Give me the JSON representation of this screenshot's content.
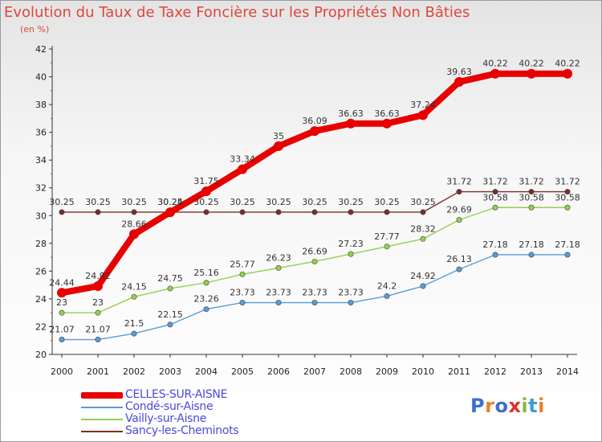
{
  "header": {
    "title": "Evolution du Taux de Taxe Foncière sur les Propriétés Non Bâties",
    "unit": "(en %)"
  },
  "brand": {
    "text": "Proxiti",
    "colors": [
      "#3b6fd0",
      "#e8822a",
      "#3b6fd0",
      "#e23030",
      "#7fbf3f",
      "#3b9bd6",
      "#e8822a"
    ]
  },
  "chart_data": {
    "type": "line",
    "title": "Evolution du Taux de Taxe Foncière sur les Propriétés Non Bâties",
    "ylabel": "(en %)",
    "xlabel": "",
    "x": [
      "2000",
      "2001",
      "2002",
      "2003",
      "2004",
      "2005",
      "2006",
      "2007",
      "2008",
      "2009",
      "2010",
      "2011",
      "2012",
      "2013",
      "2014"
    ],
    "ylim": [
      20,
      42
    ],
    "yticks": [
      20,
      22,
      24,
      26,
      28,
      30,
      32,
      34,
      36,
      38,
      40,
      42
    ],
    "grid": false,
    "legend_position": "bottom-left",
    "series": [
      {
        "name": "CELLES-SUR-AISNE",
        "color": "#e80000",
        "emphasis": true,
        "values": [
          24.44,
          24.92,
          28.66,
          30.24,
          31.75,
          33.34,
          35,
          36.09,
          36.63,
          36.63,
          37.24,
          39.63,
          40.22,
          40.22,
          40.22
        ],
        "labels": [
          "24.44",
          "24.92",
          "28.66",
          "30.24",
          "31.75",
          "33.34",
          "35",
          "36.09",
          "36.63",
          "36.63",
          "37.24",
          "39.63",
          "40.22",
          "40.22",
          "40.22"
        ]
      },
      {
        "name": "Condé-sur-Aisne",
        "color": "#5b9bd5",
        "emphasis": false,
        "values": [
          21.07,
          21.07,
          21.5,
          22.15,
          23.26,
          23.73,
          23.73,
          23.73,
          23.73,
          24.2,
          24.92,
          26.13,
          27.18,
          27.18,
          27.18
        ],
        "labels": [
          "21.07",
          "21.07",
          "21.5",
          "22.15",
          "23.26",
          "23.73",
          "23.73",
          "23.73",
          "23.73",
          "24.2",
          "24.92",
          "26.13",
          "27.18",
          "27.18",
          "27.18"
        ]
      },
      {
        "name": "Vailly-sur-Aisne",
        "color": "#92d050",
        "emphasis": false,
        "values": [
          23,
          23,
          24.15,
          24.75,
          25.16,
          25.77,
          26.23,
          26.69,
          27.23,
          27.77,
          28.32,
          29.69,
          30.58,
          30.58,
          30.58
        ],
        "labels": [
          "23",
          "23",
          "24.15",
          "24.75",
          "25.16",
          "25.77",
          "26.23",
          "26.69",
          "27.23",
          "27.77",
          "28.32",
          "29.69",
          "30.58",
          "30.58",
          "30.58"
        ]
      },
      {
        "name": "Sancy-les-Cheminots",
        "color": "#7b2c2c",
        "emphasis": false,
        "values": [
          30.25,
          30.25,
          30.25,
          30.25,
          30.25,
          30.25,
          30.25,
          30.25,
          30.25,
          30.25,
          30.25,
          31.72,
          31.72,
          31.72,
          31.72
        ],
        "labels": [
          "30.25",
          "30.25",
          "30.25",
          "30.25",
          "30.25",
          "30.25",
          "30.25",
          "30.25",
          "30.25",
          "30.25",
          "30.25",
          "31.72",
          "31.72",
          "31.72",
          "31.72"
        ]
      }
    ]
  }
}
